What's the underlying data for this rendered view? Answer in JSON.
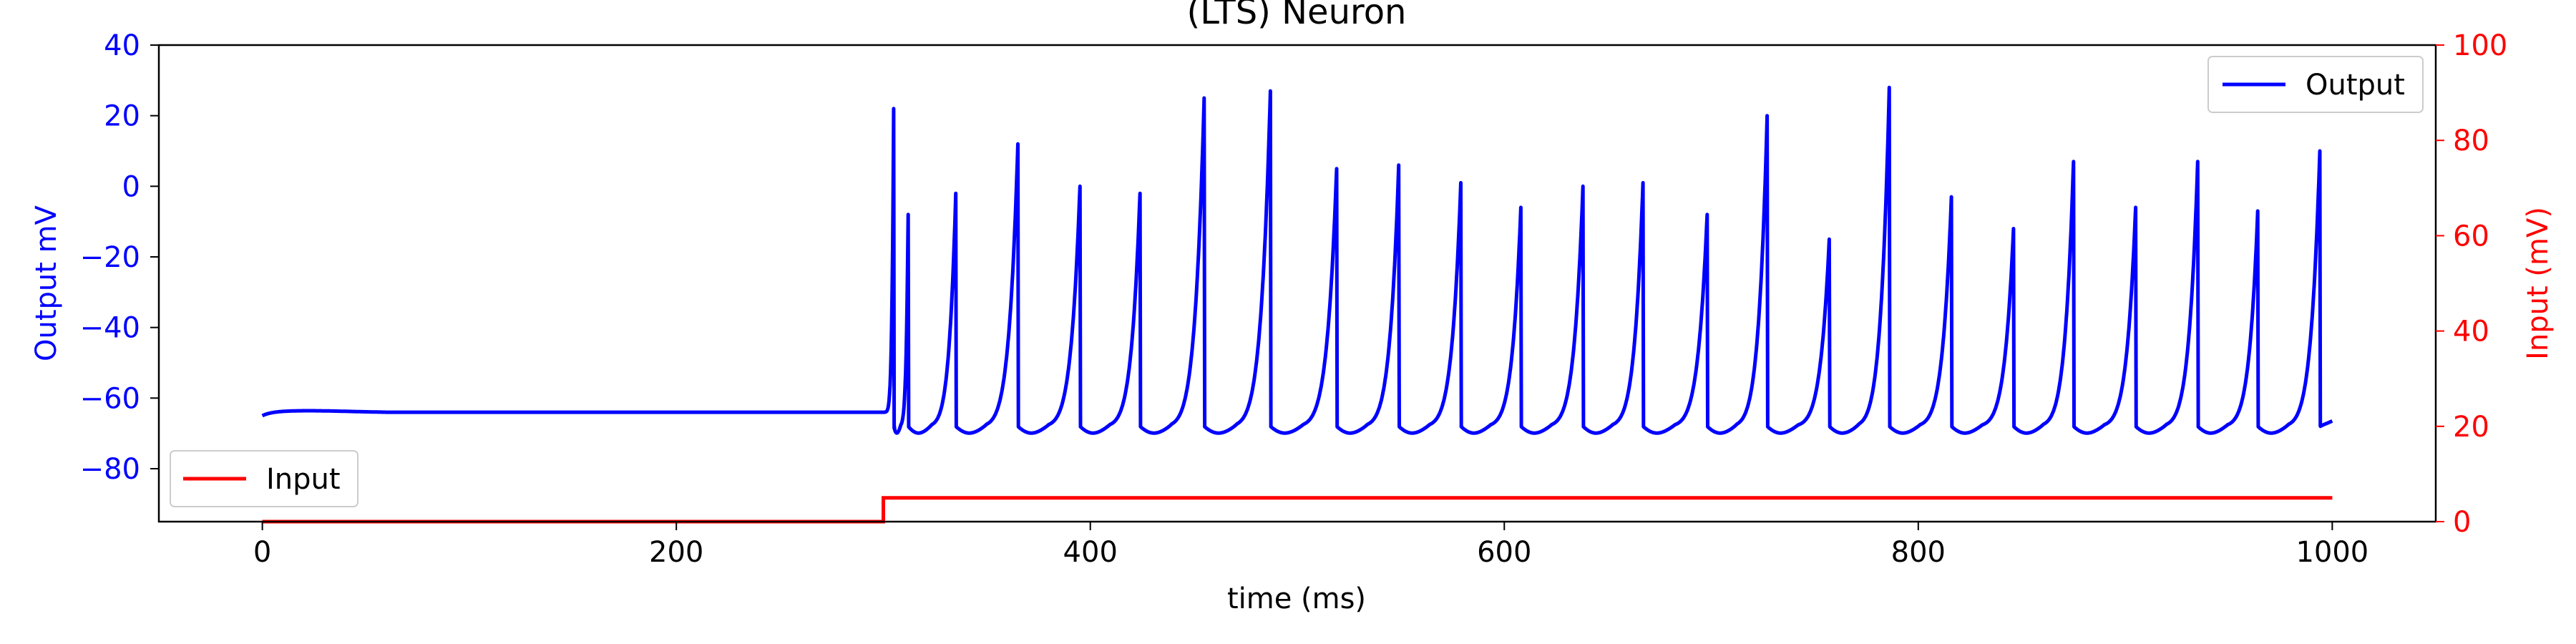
{
  "chart_data": {
    "type": "line",
    "title": "(LTS) Neuron",
    "xlabel": "time (ms)",
    "ylabel_left": "Output mV",
    "ylabel_right": "Input (mV)",
    "xlim": [
      -50,
      1050
    ],
    "ylim_left": [
      -95,
      40
    ],
    "ylim_right": [
      0,
      100
    ],
    "x_ticks": [
      0,
      200,
      400,
      600,
      800,
      1000
    ],
    "y_left_ticks": [
      -80,
      -60,
      -40,
      -20,
      0,
      20,
      40
    ],
    "y_right_ticks": [
      0,
      20,
      40,
      60,
      80,
      100
    ],
    "grid": false,
    "colors": {
      "output": "#0000ff",
      "input": "#ff0000",
      "left_axis": "#0000ff",
      "right_axis": "#ff0000"
    },
    "legends": [
      {
        "label": "Output",
        "position": "upper-right",
        "color": "#0000ff"
      },
      {
        "label": "Input",
        "position": "lower-left",
        "color": "#ff0000"
      }
    ],
    "series": [
      {
        "name": "Output",
        "axis": "left",
        "resting_potential": -64,
        "start_potential": -65,
        "reset_potential": -68,
        "spike_times": [
          305,
          312,
          335,
          365,
          395,
          424,
          455,
          487,
          519,
          549,
          579,
          608,
          638,
          667,
          698,
          727,
          757,
          786,
          816,
          846,
          875,
          905,
          935,
          964,
          994
        ],
        "spike_peaks": [
          22,
          -8,
          -2,
          12,
          0,
          -2,
          25,
          27,
          5,
          6,
          1,
          -6,
          0,
          1,
          -8,
          20,
          -15,
          28,
          -3,
          -12,
          7,
          -6,
          7,
          -7,
          10
        ]
      },
      {
        "name": "Input",
        "axis": "right",
        "x": [
          0,
          300,
          300,
          1000
        ],
        "y": [
          0,
          0,
          5,
          5
        ]
      }
    ]
  }
}
